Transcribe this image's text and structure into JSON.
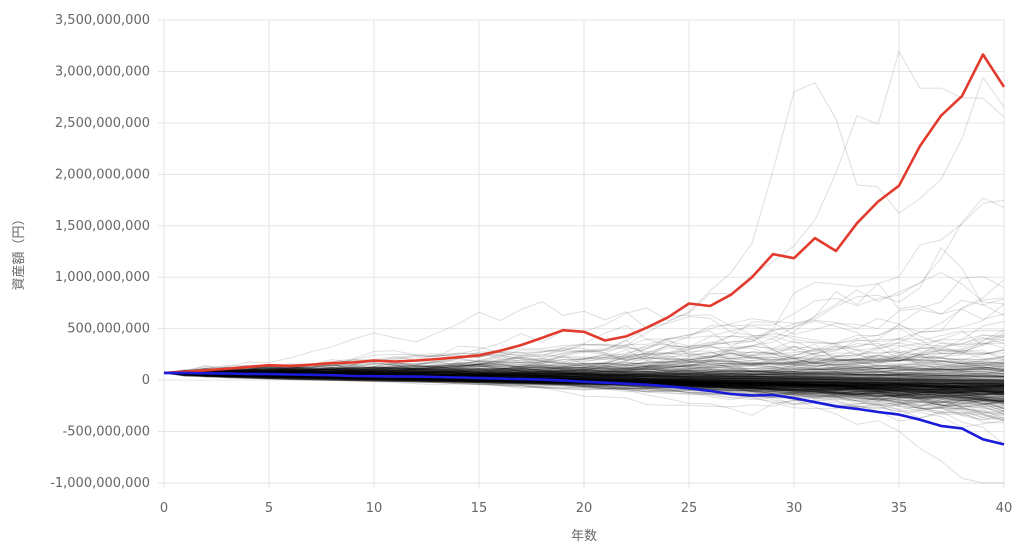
{
  "chart_data": {
    "type": "line",
    "xlabel": "年数",
    "ylabel": "資産額（円）",
    "xlim": [
      0,
      40
    ],
    "ylim": [
      -1000000000,
      3500000000
    ],
    "grid": true,
    "legend": "none",
    "x_ticks": [
      0,
      5,
      10,
      15,
      20,
      25,
      30,
      35,
      40
    ],
    "y_ticks": [
      -1000000000,
      -500000000,
      0,
      500000000,
      1000000000,
      1500000000,
      2000000000,
      2500000000,
      3000000000,
      3500000000
    ],
    "x_tick_labels": [
      "0",
      "5",
      "10",
      "15",
      "20",
      "25",
      "30",
      "35",
      "40"
    ],
    "y_tick_labels": [
      "-1,000,000,000",
      "-500,000,000",
      "0",
      "500,000,000",
      "1,000,000,000",
      "1,500,000,000",
      "2,000,000,000",
      "2,500,000,000",
      "3,000,000,000",
      "3,500,000,000"
    ],
    "x": [
      0,
      1,
      2,
      3,
      4,
      5,
      6,
      7,
      8,
      9,
      10,
      11,
      12,
      13,
      14,
      15,
      16,
      17,
      18,
      19,
      20,
      21,
      22,
      23,
      24,
      25,
      26,
      27,
      28,
      29,
      30,
      31,
      32,
      33,
      34,
      35,
      36,
      37,
      38,
      39,
      40
    ],
    "series": [
      {
        "color": "#e23b2e",
        "values": [
          70000000,
          82000000,
          95000000,
          110000000,
          128000000,
          145000000,
          138000000,
          150000000,
          165000000,
          172000000,
          190000000,
          180000000,
          190000000,
          205000000,
          222000000,
          240000000,
          285000000,
          340000000,
          410000000,
          485000000,
          470000000,
          385000000,
          425000000,
          510000000,
          610000000,
          745000000,
          720000000,
          830000000,
          1000000000,
          1225000000,
          1185000000,
          1380000000,
          1255000000,
          1525000000,
          1735000000,
          1890000000,
          2275000000,
          2570000000,
          2760000000,
          3165000000,
          2850000000
        ]
      },
      {
        "color": "#1a1adb",
        "values": [
          70000000,
          68000000,
          66000000,
          64000000,
          60000000,
          58000000,
          55000000,
          52000000,
          48000000,
          40000000,
          38000000,
          36000000,
          34000000,
          30000000,
          25000000,
          20000000,
          15000000,
          10000000,
          5000000,
          -5000000,
          -15000000,
          -25000000,
          -35000000,
          -45000000,
          -60000000,
          -80000000,
          -105000000,
          -135000000,
          -150000000,
          -145000000,
          -175000000,
          -215000000,
          -255000000,
          -280000000,
          -310000000,
          -335000000,
          -385000000,
          -445000000,
          -470000000,
          -575000000,
          -625000000
        ]
      }
    ],
    "simulation_paths": {
      "count": 400,
      "color": "#000000",
      "start_value": 70000000,
      "median_end": 300000000
    }
  }
}
